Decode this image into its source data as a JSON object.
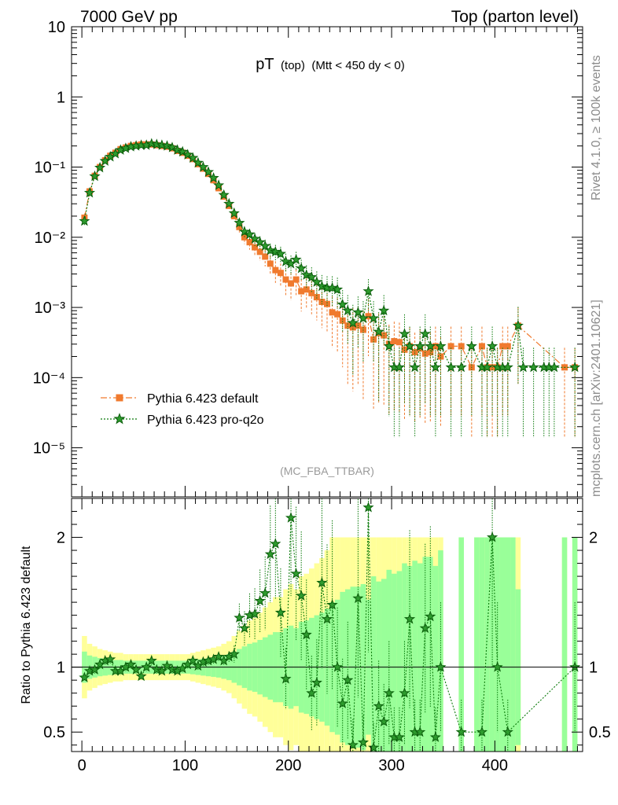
{
  "header": {
    "left": "7000 GeV pp",
    "right": "Top (parton level)"
  },
  "plot_title": {
    "main": "pT",
    "sub1": "(top)",
    "sub2": "(Mtt < 450 dy < 0)"
  },
  "watermark": "(MC_FBA_TTBAR)",
  "side_text": {
    "top": "Rivet 4.1.0, ≥ 100k events",
    "bottom": "mcplots.cern.ch [arXiv:2401.10621]"
  },
  "colors": {
    "default": "#f07a2e",
    "proq2o": "#0b7a0b",
    "band_outer": "#ffff99",
    "band_inner": "#99ff99"
  },
  "chart_data": [
    {
      "type": "scatter",
      "panel": "main",
      "yscale": "log",
      "xlim": [
        -10,
        485
      ],
      "ylim": [
        2e-06,
        10
      ],
      "ytick_labels": [
        "10",
        "1",
        "10⁻¹",
        "10⁻²",
        "10⁻³",
        "10⁻⁴",
        "10⁻⁵"
      ],
      "ytick_values": [
        10,
        1,
        0.1,
        0.01,
        0.001,
        0.0001,
        1e-05
      ],
      "legend": [
        "Pythia 6.423 default",
        "Pythia 6.423 pro-q2o"
      ],
      "legend_position": "lower-left",
      "series": [
        {
          "name": "Pythia 6.423 default",
          "x": [
            2.5,
            7.5,
            12.5,
            17.5,
            22.5,
            27.5,
            32.5,
            37.5,
            42.5,
            47.5,
            52.5,
            57.5,
            62.5,
            67.5,
            72.5,
            77.5,
            82.5,
            87.5,
            92.5,
            97.5,
            102.5,
            107.5,
            112.5,
            117.5,
            122.5,
            127.5,
            132.5,
            137.5,
            142.5,
            147.5,
            152.5,
            157.5,
            162.5,
            167.5,
            172.5,
            177.5,
            182.5,
            187.5,
            192.5,
            197.5,
            202.5,
            207.5,
            212.5,
            217.5,
            222.5,
            227.5,
            232.5,
            237.5,
            242.5,
            247.5,
            252.5,
            257.5,
            262.5,
            267.5,
            272.5,
            277.5,
            282.5,
            287.5,
            292.5,
            297.5,
            302.5,
            307.5,
            312.5,
            317.5,
            322.5,
            327.5,
            332.5,
            337.5,
            342.5,
            347.5,
            357.5,
            367.5,
            377.5,
            387.5,
            392.5,
            397.5,
            402.5,
            407.5,
            412.5,
            422.5,
            467.5,
            477.5
          ],
          "values": [
            0.019,
            0.045,
            0.075,
            0.1,
            0.125,
            0.145,
            0.16,
            0.18,
            0.19,
            0.2,
            0.205,
            0.21,
            0.21,
            0.21,
            0.205,
            0.2,
            0.195,
            0.185,
            0.17,
            0.16,
            0.145,
            0.13,
            0.11,
            0.095,
            0.08,
            0.065,
            0.05,
            0.038,
            0.028,
            0.02,
            0.014,
            0.01,
            0.0085,
            0.0072,
            0.0062,
            0.0053,
            0.0042,
            0.0034,
            0.0031,
            0.0025,
            0.0022,
            0.0025,
            0.0017,
            0.0018,
            0.0016,
            0.0014,
            0.0012,
            0.00112,
            0.00085,
            0.0008,
            0.00065,
            0.00055,
            0.00052,
            0.00055,
            0.00048,
            0.00075,
            0.00035,
            0.00043,
            0.0004,
            0.0003,
            0.00033,
            0.00032,
            0.00025,
            0.00028,
            0.00023,
            0.00026,
            0.00022,
            0.00023,
            0.00028,
            0.0002,
            0.00028,
            0.00028,
            0.00014,
            0.00028,
            0.00014,
            0.00014,
            0.00014,
            0.00028,
            0.00028,
            0.00055,
            0.00014,
            0.00014
          ]
        },
        {
          "name": "Pythia 6.423 pro-q2o",
          "x": [
            2.5,
            7.5,
            12.5,
            17.5,
            22.5,
            27.5,
            32.5,
            37.5,
            42.5,
            47.5,
            52.5,
            57.5,
            62.5,
            67.5,
            72.5,
            77.5,
            82.5,
            87.5,
            92.5,
            97.5,
            102.5,
            107.5,
            112.5,
            117.5,
            122.5,
            127.5,
            132.5,
            137.5,
            142.5,
            147.5,
            152.5,
            157.5,
            162.5,
            167.5,
            172.5,
            177.5,
            182.5,
            187.5,
            192.5,
            197.5,
            202.5,
            207.5,
            212.5,
            217.5,
            222.5,
            227.5,
            232.5,
            237.5,
            242.5,
            247.5,
            252.5,
            257.5,
            262.5,
            267.5,
            272.5,
            277.5,
            282.5,
            287.5,
            292.5,
            297.5,
            302.5,
            307.5,
            312.5,
            317.5,
            322.5,
            327.5,
            332.5,
            337.5,
            342.5,
            347.5,
            357.5,
            367.5,
            377.5,
            387.5,
            392.5,
            397.5,
            402.5,
            407.5,
            412.5,
            422.5,
            427.5,
            437.5,
            447.5,
            452.5,
            457.5,
            477.5
          ],
          "values": [
            0.017,
            0.043,
            0.074,
            0.098,
            0.122,
            0.14,
            0.155,
            0.175,
            0.185,
            0.195,
            0.2,
            0.205,
            0.205,
            0.215,
            0.21,
            0.205,
            0.2,
            0.19,
            0.175,
            0.165,
            0.15,
            0.135,
            0.115,
            0.1,
            0.085,
            0.07,
            0.055,
            0.04,
            0.03,
            0.022,
            0.016,
            0.012,
            0.011,
            0.0095,
            0.0085,
            0.0075,
            0.0065,
            0.0062,
            0.0058,
            0.0045,
            0.0042,
            0.0048,
            0.0036,
            0.0029,
            0.0027,
            0.0023,
            0.002,
            0.0019,
            0.0019,
            0.0018,
            0.0011,
            0.0009,
            0.0006,
            0.00085,
            0.0007,
            0.0017,
            0.0007,
            0.00045,
            0.0009,
            0.00028,
            0.00014,
            0.00014,
            0.00042,
            0.00028,
            0.00014,
            0.00028,
            0.00042,
            0.00028,
            0.00014,
            0.00028,
            0.00014,
            0.00014,
            0.00028,
            0.00014,
            0.00014,
            0.00028,
            0.00014,
            0.00014,
            0.00014,
            0.00055,
            0.00014,
            0.00014,
            0.00014,
            0.00014,
            0.00014,
            0.00014
          ]
        }
      ]
    },
    {
      "type": "scatter",
      "panel": "ratio",
      "ylabel": "Ratio to Pythia 6.423 default",
      "xlim": [
        -10,
        485
      ],
      "ylim": [
        0.35,
        2.3
      ],
      "xtick_labels": [
        "0",
        "100",
        "200",
        "300",
        "400"
      ],
      "xtick_values": [
        0,
        100,
        200,
        300,
        400
      ],
      "ytick_labels": [
        "0.5",
        "1",
        "2"
      ],
      "ytick_values": [
        0.5,
        1,
        2
      ],
      "reference_line": 1,
      "band_edges": [
        0,
        5,
        10,
        15,
        20,
        25,
        30,
        35,
        40,
        45,
        50,
        55,
        60,
        65,
        70,
        75,
        80,
        85,
        90,
        95,
        100,
        105,
        110,
        115,
        120,
        125,
        130,
        135,
        140,
        145,
        150,
        155,
        160,
        165,
        170,
        175,
        180,
        185,
        190,
        195,
        200,
        205,
        210,
        215,
        220,
        225,
        230,
        235,
        240,
        245,
        250,
        255,
        260,
        265,
        270,
        275,
        280,
        285,
        290,
        295,
        300,
        305,
        310,
        315,
        320,
        325,
        330,
        335,
        340,
        345,
        350,
        365,
        370,
        380,
        385,
        390,
        395,
        400,
        405,
        410,
        415,
        420,
        425,
        465,
        470,
        475,
        480
      ],
      "band_inner_halfwidth": [
        0.12,
        0.09,
        0.08,
        0.07,
        0.065,
        0.06,
        0.055,
        0.055,
        0.05,
        0.05,
        0.05,
        0.05,
        0.05,
        0.05,
        0.05,
        0.05,
        0.05,
        0.05,
        0.05,
        0.05,
        0.05,
        0.055,
        0.06,
        0.065,
        0.07,
        0.075,
        0.08,
        0.09,
        0.1,
        0.12,
        0.14,
        0.16,
        0.18,
        0.19,
        0.21,
        0.23,
        0.25,
        0.27,
        0.27,
        0.3,
        0.32,
        0.3,
        0.35,
        0.36,
        0.38,
        0.4,
        0.42,
        0.45,
        0.5,
        0.52,
        0.58,
        0.6,
        0.62,
        0.62,
        0.64,
        0.52,
        0.7,
        0.66,
        0.68,
        0.75,
        0.72,
        0.74,
        0.8,
        0.78,
        0.82,
        0.8,
        0.85,
        0.85,
        0.78,
        0.9,
        0,
        1,
        0,
        1,
        1,
        1,
        1,
        1,
        1,
        1,
        1,
        0.6,
        0,
        1,
        0,
        1
      ],
      "band_outer_halfwidth": [
        0.24,
        0.18,
        0.16,
        0.14,
        0.13,
        0.12,
        0.11,
        0.11,
        0.1,
        0.1,
        0.1,
        0.1,
        0.1,
        0.1,
        0.1,
        0.1,
        0.1,
        0.1,
        0.1,
        0.1,
        0.1,
        0.11,
        0.12,
        0.13,
        0.14,
        0.15,
        0.16,
        0.18,
        0.2,
        0.24,
        0.28,
        0.32,
        0.36,
        0.38,
        0.42,
        0.46,
        0.5,
        0.54,
        0.54,
        0.6,
        0.64,
        0.6,
        0.7,
        0.72,
        0.76,
        0.8,
        0.84,
        0.9,
        1,
        1,
        1,
        1,
        1,
        1,
        1,
        1,
        1,
        1,
        1,
        1,
        1,
        1,
        1,
        1,
        1,
        1,
        1,
        1,
        1,
        1,
        0,
        1,
        0,
        1,
        1,
        1,
        1,
        1,
        1,
        1,
        1,
        1,
        0,
        1,
        0,
        1
      ],
      "series": [
        {
          "name": "Pythia 6.423 pro-q2o",
          "x": [
            2.5,
            7.5,
            12.5,
            17.5,
            22.5,
            27.5,
            32.5,
            37.5,
            42.5,
            47.5,
            52.5,
            57.5,
            62.5,
            67.5,
            72.5,
            77.5,
            82.5,
            87.5,
            92.5,
            97.5,
            102.5,
            107.5,
            112.5,
            117.5,
            122.5,
            127.5,
            132.5,
            137.5,
            142.5,
            147.5,
            152.5,
            157.5,
            162.5,
            167.5,
            172.5,
            177.5,
            182.5,
            187.5,
            192.5,
            197.5,
            202.5,
            207.5,
            212.5,
            217.5,
            222.5,
            227.5,
            232.5,
            237.5,
            242.5,
            247.5,
            252.5,
            257.5,
            262.5,
            267.5,
            272.5,
            277.5,
            282.5,
            287.5,
            292.5,
            297.5,
            302.5,
            307.5,
            312.5,
            317.5,
            322.5,
            327.5,
            332.5,
            337.5,
            342.5,
            347.5,
            367.5,
            387.5,
            397.5,
            402.5,
            412.5,
            477.5
          ],
          "values": [
            0.92,
            0.97,
            0.98,
            1.02,
            1.05,
            1.06,
            0.97,
            0.97,
            1.0,
            1.02,
            0.98,
            0.93,
            1.0,
            1.05,
            0.98,
            0.97,
            1.01,
            0.98,
            0.97,
            0.99,
            1.02,
            1.05,
            1.01,
            1.04,
            1.05,
            1.06,
            1.08,
            1.05,
            1.08,
            1.1,
            1.38,
            1.3,
            1.4,
            1.41,
            1.51,
            1.57,
            1.87,
            1.95,
            1.42,
            0.91,
            2.15,
            1.72,
            1.55,
            1.25,
            0.8,
            0.88,
            1.65,
            1.37,
            1.48,
            1.0,
            0.72,
            0.9,
            0.4,
            1.53,
            0.42,
            2.23,
            0.38,
            0.7,
            0.58,
            0.8,
            0.46,
            0.46,
            0.8,
            1.37,
            0.5,
            0.5,
            1.3,
            1.39,
            0.46,
            1.0,
            0.5,
            0.5,
            2.0,
            1.0,
            0.5,
            1.0
          ]
        }
      ]
    }
  ]
}
